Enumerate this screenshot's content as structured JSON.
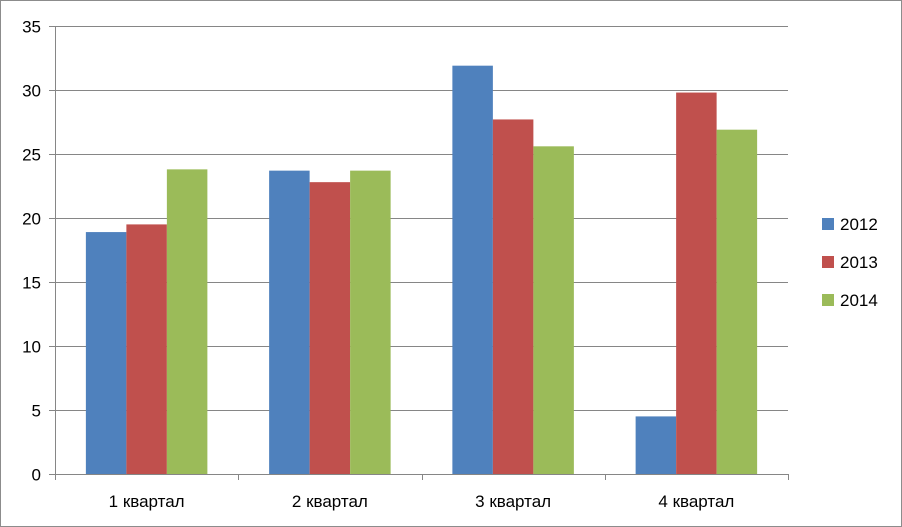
{
  "chart_data": {
    "type": "bar",
    "categories": [
      "1 квартал",
      "2 квартал",
      "3 квартал",
      "4 квартал"
    ],
    "series": [
      {
        "name": "2012",
        "values": [
          18.9,
          23.7,
          31.9,
          4.5
        ],
        "color": "#4F81BD"
      },
      {
        "name": "2013",
        "values": [
          19.5,
          22.8,
          27.7,
          29.8
        ],
        "color": "#C0504D"
      },
      {
        "name": "2014",
        "values": [
          23.8,
          23.7,
          25.6,
          26.9
        ],
        "color": "#9BBB59"
      }
    ],
    "title": "",
    "xlabel": "",
    "ylabel": "",
    "ylim": [
      0,
      35
    ],
    "yticks": [
      0,
      5,
      10,
      15,
      20,
      25,
      30,
      35
    ],
    "grid": true,
    "legend": "right"
  }
}
